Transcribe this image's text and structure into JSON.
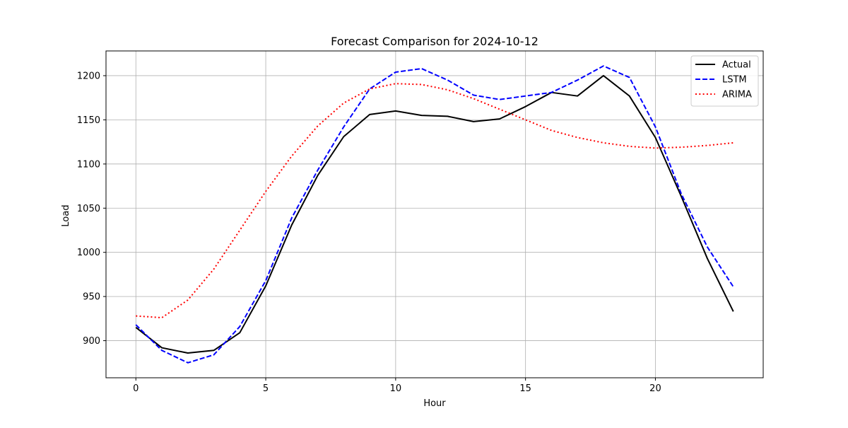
{
  "chart_data": {
    "type": "line",
    "title": "Forecast Comparison for 2024-10-12",
    "xlabel": "Hour",
    "ylabel": "Load",
    "xlim": [
      -1.15,
      24.15
    ],
    "ylim": [
      858,
      1228
    ],
    "xticks": [
      0,
      5,
      10,
      15,
      20
    ],
    "yticks": [
      900,
      950,
      1000,
      1050,
      1100,
      1150,
      1200
    ],
    "grid": true,
    "legend_position": "upper right",
    "x": [
      0,
      1,
      2,
      3,
      4,
      5,
      6,
      7,
      8,
      9,
      10,
      11,
      12,
      13,
      14,
      15,
      16,
      17,
      18,
      19,
      20,
      21,
      22,
      23
    ],
    "series": [
      {
        "name": "Actual",
        "color": "#000000",
        "style": "solid",
        "values": [
          915,
          892,
          886,
          889,
          909,
          962,
          1031,
          1087,
          1131,
          1156,
          1160,
          1155,
          1154,
          1148,
          1151,
          1165,
          1181,
          1177,
          1200,
          1177,
          1130,
          1063,
          993,
          933
        ]
      },
      {
        "name": "LSTM",
        "color": "#0000ff",
        "style": "dashed",
        "values": [
          918,
          889,
          875,
          884,
          916,
          968,
          1039,
          1093,
          1142,
          1185,
          1204,
          1208,
          1195,
          1178,
          1173,
          1177,
          1181,
          1195,
          1211,
          1198,
          1142,
          1066,
          1006,
          961
        ]
      },
      {
        "name": "ARIMA",
        "color": "#ff0000",
        "style": "dotted",
        "values": [
          928,
          926,
          946,
          981,
          1025,
          1069,
          1109,
          1143,
          1169,
          1185,
          1191,
          1190,
          1184,
          1174,
          1162,
          1150,
          1138,
          1130,
          1124,
          1120,
          1118,
          1119,
          1121,
          1124
        ]
      }
    ]
  }
}
